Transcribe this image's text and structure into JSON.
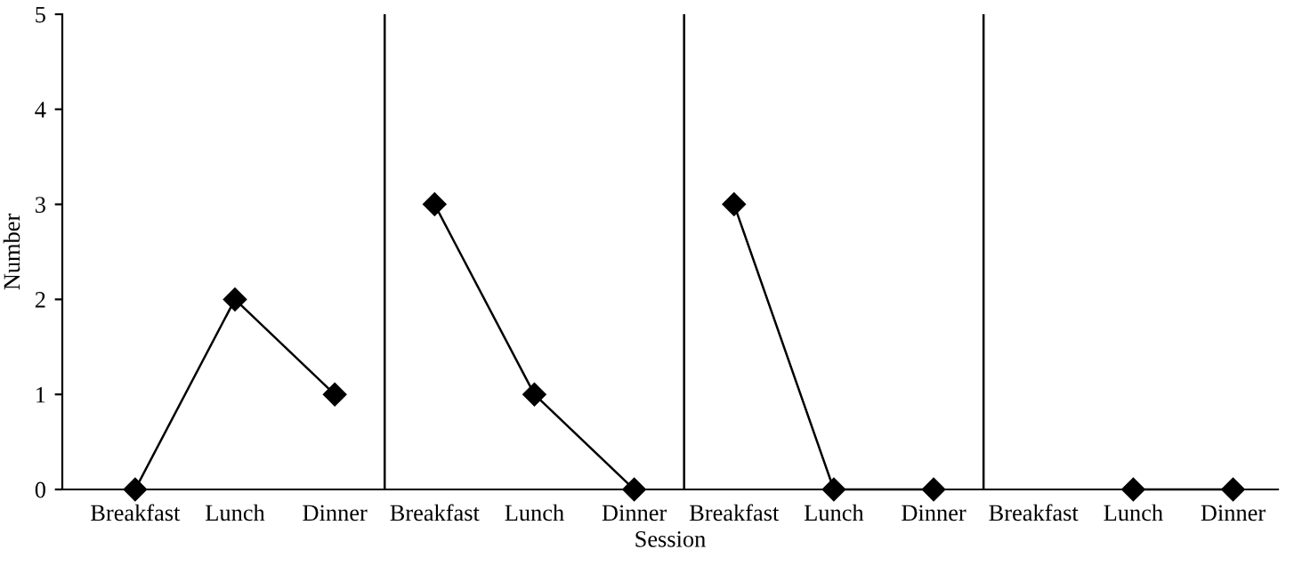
{
  "chart_data": {
    "type": "line",
    "xlabel": "Session",
    "ylabel": "Number",
    "categories": [
      "Breakfast",
      "Lunch",
      "Dinner",
      "Breakfast",
      "Lunch",
      "Dinner",
      "Breakfast",
      "Lunch",
      "Dinner",
      "Breakfast",
      "Lunch",
      "Dinner"
    ],
    "series": [
      {
        "color": "#000000",
        "values": [
          0,
          2,
          1,
          null,
          null,
          null,
          null,
          null,
          null,
          null,
          null,
          null
        ]
      },
      {
        "color": "#000000",
        "values": [
          null,
          null,
          null,
          3,
          1,
          0,
          null,
          null,
          null,
          null,
          null,
          null
        ]
      },
      {
        "color": "#000000",
        "values": [
          null,
          null,
          null,
          null,
          null,
          null,
          3,
          0,
          0,
          null,
          null,
          null
        ]
      },
      {
        "color": "#000000",
        "values": [
          null,
          null,
          null,
          null,
          null,
          null,
          null,
          null,
          null,
          null,
          0,
          0
        ]
      }
    ],
    "ylim": [
      0,
      5
    ],
    "yticks": [
      0,
      1,
      2,
      3,
      4,
      5
    ],
    "marker": "diamond",
    "line_style": "solid",
    "grid": false
  }
}
